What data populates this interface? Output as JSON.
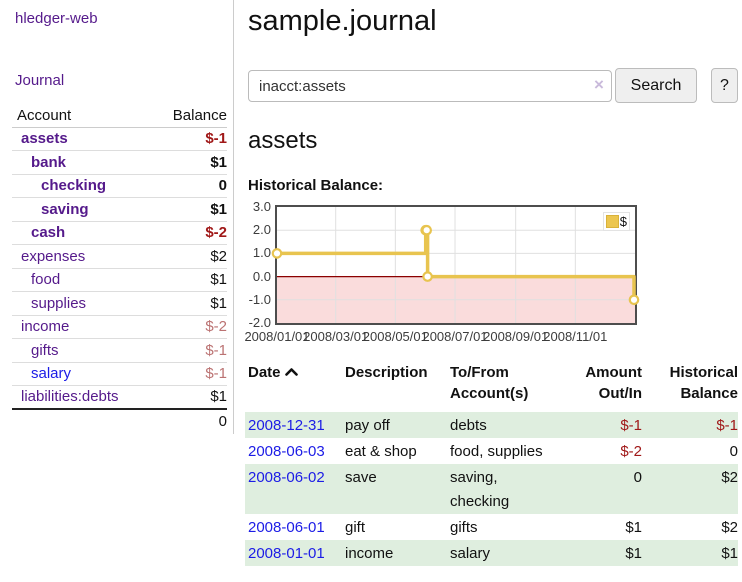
{
  "colors": {
    "purple_link": "#551a8b",
    "blue_link": "#1c1ce6",
    "negative_strong": "#a01818",
    "negative_soft": "#bb7272",
    "row_highlight_green": "#dfeedf",
    "chart_line_gold": "#e8c44f",
    "chart_negative_fill": "#fadcdc",
    "chart_zero_line": "#8b0000",
    "chart_grid": "#e0e0e0"
  },
  "sidebar": {
    "app_title": "hledger-web",
    "journal_link": "Journal",
    "accounts_table": {
      "headers": [
        "Account",
        "Balance"
      ],
      "rows": [
        {
          "name": "assets",
          "indent": 0,
          "bold": true,
          "link": "visited",
          "balance": "$-1",
          "balance_class": "neg-strong"
        },
        {
          "name": "bank",
          "indent": 1,
          "bold": true,
          "link": "visited",
          "balance": "$1",
          "balance_class": "pos"
        },
        {
          "name": "checking",
          "indent": 2,
          "bold": true,
          "link": "visited",
          "balance": "0",
          "balance_class": "pos"
        },
        {
          "name": "saving",
          "indent": 2,
          "bold": true,
          "link": "visited",
          "balance": "$1",
          "balance_class": "pos"
        },
        {
          "name": "cash",
          "indent": 1,
          "bold": true,
          "link": "visited",
          "balance": "$-2",
          "balance_class": "neg-strong"
        },
        {
          "name": "expenses",
          "indent": 0,
          "bold": false,
          "link": "visited",
          "balance": "$2",
          "balance_class": "pos"
        },
        {
          "name": "food",
          "indent": 1,
          "bold": false,
          "link": "visited",
          "balance": "$1",
          "balance_class": "pos"
        },
        {
          "name": "supplies",
          "indent": 1,
          "bold": false,
          "link": "visited",
          "balance": "$1",
          "balance_class": "pos"
        },
        {
          "name": "income",
          "indent": 0,
          "bold": false,
          "link": "visited",
          "balance": "$-2",
          "balance_class": "neg-soft"
        },
        {
          "name": "gifts",
          "indent": 1,
          "bold": false,
          "link": "visited",
          "balance": "$-1",
          "balance_class": "neg-soft"
        },
        {
          "name": "salary",
          "indent": 1,
          "bold": false,
          "link": "unvisited",
          "balance": "$-1",
          "balance_class": "neg-soft"
        },
        {
          "name": "liabilities:debts",
          "indent": 0,
          "bold": false,
          "link": "visited",
          "balance": "$1",
          "balance_class": "pos"
        }
      ],
      "total": "0"
    }
  },
  "main": {
    "title": "sample.journal",
    "search": {
      "value": "inacct:assets",
      "clear_icon": "×",
      "button_label": "Search",
      "help_label": "?"
    },
    "account_heading": "assets",
    "chart_label": "Historical Balance:",
    "register_table": {
      "headers": [
        {
          "label": "Date",
          "sorted": "asc"
        },
        {
          "label": "Description"
        },
        {
          "label": "To/From Account(s)"
        },
        {
          "label": "Amount Out/In",
          "align": "right"
        },
        {
          "label": "Historical Balance",
          "align": "right"
        }
      ],
      "rows": [
        {
          "date": "2008-12-31",
          "description": "pay off",
          "accounts": "debts",
          "amount": "$-1",
          "amount_class": "neg-strong",
          "balance": "$-1",
          "balance_class": "neg-strong",
          "shaded": true
        },
        {
          "date": "2008-06-03",
          "description": "eat & shop",
          "accounts": "food, supplies",
          "amount": "$-2",
          "amount_class": "neg-strong",
          "balance": "0",
          "balance_class": "pos",
          "shaded": false
        },
        {
          "date": "2008-06-02",
          "description": "save",
          "accounts": "saving, checking",
          "amount": "0",
          "amount_class": "pos",
          "balance": "$2",
          "balance_class": "pos",
          "shaded": true
        },
        {
          "date": "2008-06-01",
          "description": "gift",
          "accounts": "gifts",
          "amount": "$1",
          "amount_class": "pos",
          "balance": "$2",
          "balance_class": "pos",
          "shaded": false
        },
        {
          "date": "2008-01-01",
          "description": "income",
          "accounts": "salary",
          "amount": "$1",
          "amount_class": "pos",
          "balance": "$1",
          "balance_class": "pos",
          "shaded": true
        }
      ]
    }
  },
  "chart_data": {
    "type": "line",
    "title": "Historical Balance",
    "series": [
      {
        "name": "$",
        "color": "#e8c44f",
        "step": true,
        "points": [
          [
            "2008-01-01",
            1
          ],
          [
            "2008-06-01",
            2
          ],
          [
            "2008-06-02",
            2
          ],
          [
            "2008-06-03",
            0
          ],
          [
            "2008-12-31",
            -1
          ]
        ]
      }
    ],
    "x_range": [
      "2008-01-01",
      "2009-01-01"
    ],
    "y_range": [
      -2,
      3
    ],
    "y_ticks": [
      3.0,
      2.0,
      1.0,
      0.0,
      -1.0,
      -2.0
    ],
    "x_ticks": [
      {
        "date": "2008-01-01",
        "label": "2008/01/01"
      },
      {
        "date": "2008-03-01",
        "label": "2008/03/01"
      },
      {
        "date": "2008-05-01",
        "label": "2008/05/01"
      },
      {
        "date": "2008-07-01",
        "label": "2008/07/01"
      },
      {
        "date": "2008-09-01",
        "label": "2008/09/01"
      },
      {
        "date": "2008-11-01",
        "label": "2008/11/01"
      }
    ],
    "grid": true,
    "legend_position": "top-right",
    "zero_line_color": "#8b0000",
    "negative_fill": "#fadcdc",
    "grid_color": "#e0e0e0"
  }
}
